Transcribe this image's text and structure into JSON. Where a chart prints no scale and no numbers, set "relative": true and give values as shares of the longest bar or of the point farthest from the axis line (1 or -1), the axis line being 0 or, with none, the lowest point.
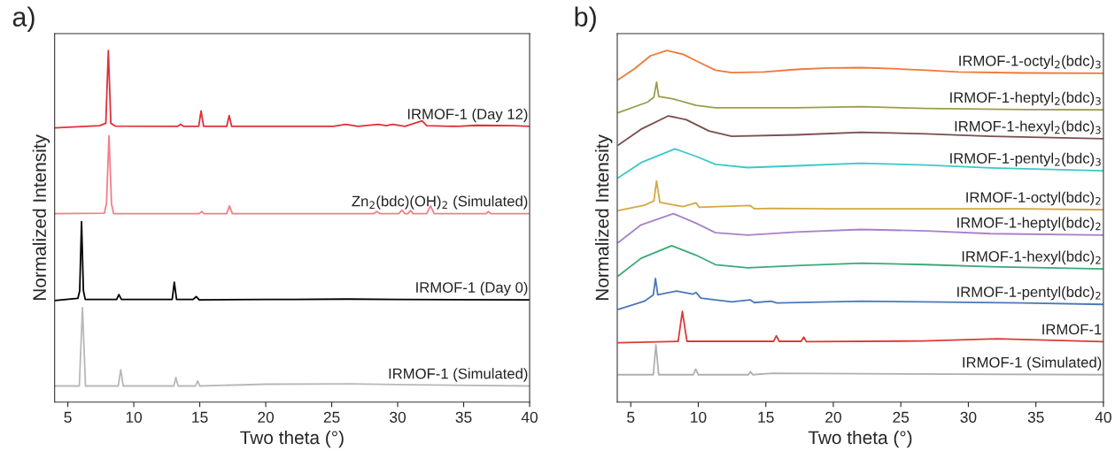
{
  "chart_data": [
    {
      "type": "line",
      "title": "a)",
      "xlabel": "Two theta (°)",
      "ylabel": "Normalized Intensity",
      "relative": true,
      "xlim": [
        4,
        40
      ],
      "xticks": [
        5,
        10,
        15,
        20,
        25,
        30,
        35,
        40
      ],
      "tick_labels": "x",
      "legend": false,
      "grid": false,
      "series": [
        {
          "name": "IRMOF-1 (Day 12)",
          "color": "#e0303a",
          "x": [
            4.0,
            7.41,
            7.88,
            8.07,
            8.26,
            8.59,
            13.31,
            13.55,
            13.78,
            14.92,
            15.1,
            15.29,
            17.04,
            17.23,
            17.42,
            25.12,
            26.06,
            27.0,
            28.54,
            29.13,
            29.6,
            30.55,
            31.02,
            31.85,
            32.2,
            34.56,
            35.98,
            38.8,
            40.0
          ],
          "values": [
            0.78,
            0.786,
            0.793,
            1.0,
            0.793,
            0.785,
            0.784,
            0.79,
            0.784,
            0.784,
            0.828,
            0.784,
            0.784,
            0.815,
            0.784,
            0.784,
            0.79,
            0.784,
            0.79,
            0.786,
            0.79,
            0.784,
            0.79,
            0.8,
            0.786,
            0.784,
            0.787,
            0.786,
            0.784
          ]
        },
        {
          "name": "Zn$_{2}$(bdc)(OH)$_{2}$ (Simulated)",
          "color": "#f08088",
          "x": [
            4.0,
            7.76,
            7.93,
            8.12,
            8.31,
            8.47,
            14.96,
            15.15,
            15.34,
            17.04,
            17.25,
            17.47,
            28.19,
            28.42,
            28.66,
            30.08,
            30.32,
            30.55,
            30.78,
            30.97,
            31.16,
            32.2,
            32.49,
            32.77,
            36.69,
            36.88,
            37.06,
            40.0
          ],
          "values": [
            0.536,
            0.537,
            0.564,
            0.758,
            0.564,
            0.536,
            0.536,
            0.542,
            0.536,
            0.536,
            0.558,
            0.536,
            0.536,
            0.542,
            0.536,
            0.536,
            0.546,
            0.536,
            0.536,
            0.545,
            0.536,
            0.536,
            0.558,
            0.536,
            0.536,
            0.542,
            0.536,
            0.536
          ]
        },
        {
          "name": "IRMOF-1 (Day 0)",
          "color": "#000000",
          "x": [
            4.0,
            5.76,
            5.9,
            6.04,
            6.18,
            6.32,
            8.7,
            8.87,
            9.06,
            12.91,
            13.07,
            13.24,
            14.49,
            14.73,
            14.96,
            20.16,
            22.16,
            26.18,
            29.84,
            40.0
          ],
          "values": [
            0.289,
            0.295,
            0.317,
            0.513,
            0.317,
            0.292,
            0.292,
            0.306,
            0.292,
            0.292,
            0.341,
            0.292,
            0.292,
            0.3,
            0.291,
            0.292,
            0.292,
            0.293,
            0.292,
            0.291
          ]
        },
        {
          "name": "IRMOF-1 (Simulated)",
          "color": "#b8b8b8",
          "x": [
            4.0,
            5.87,
            6.11,
            6.34,
            8.82,
            9.01,
            9.2,
            13.03,
            13.19,
            13.36,
            14.68,
            14.84,
            15.01,
            20.04,
            26.41,
            29.96,
            40.0
          ],
          "values": [
            0.046,
            0.046,
            0.269,
            0.046,
            0.046,
            0.092,
            0.046,
            0.046,
            0.07,
            0.046,
            0.046,
            0.06,
            0.046,
            0.051,
            0.052,
            0.05,
            0.046
          ]
        }
      ]
    },
    {
      "type": "line",
      "title": "b)",
      "xlabel": "Two theta (°)",
      "ylabel": "Normalized Intensity",
      "relative": true,
      "xlim": [
        4,
        40
      ],
      "xticks": [
        5,
        10,
        15,
        20,
        25,
        30,
        35,
        40
      ],
      "tick_labels": "x",
      "legend": false,
      "grid": false,
      "series": [
        {
          "name": "IRMOF-1-octyl$_{2}$(bdc)$_{3}$",
          "color": "#f07838",
          "x": [
            4.08,
            5.28,
            6.47,
            7.67,
            8.87,
            10.07,
            11.27,
            12.47,
            14.86,
            17.26,
            19.66,
            22.06,
            24.45,
            26.85,
            29.25,
            34.04,
            40.0
          ],
          "values": [
            0.917,
            0.948,
            0.985,
            1.0,
            0.989,
            0.966,
            0.944,
            0.937,
            0.939,
            0.946,
            0.95,
            0.951,
            0.948,
            0.944,
            0.939,
            0.936,
            0.935
          ]
        },
        {
          "name": "IRMOF-1-heptyl$_{2}$(bdc)$_{3}$",
          "color": "#9c9c50",
          "x": [
            4.08,
            6.24,
            6.71,
            6.91,
            7.07,
            8.15,
            9.83,
            11.27,
            13.83,
            17.26,
            22.06,
            26.85,
            34.04,
            40.0
          ],
          "values": [
            0.823,
            0.853,
            0.867,
            0.91,
            0.869,
            0.862,
            0.844,
            0.837,
            0.837,
            0.837,
            0.84,
            0.835,
            0.832,
            0.831
          ]
        },
        {
          "name": "IRMOF-1-hexyl$_{2}$(bdc)$_{3}$",
          "color": "#7a4e4e",
          "x": [
            4.08,
            5.76,
            7.79,
            9.11,
            10.79,
            12.47,
            17.26,
            22.06,
            26.85,
            31.65,
            40.0
          ],
          "values": [
            0.731,
            0.776,
            0.814,
            0.803,
            0.771,
            0.756,
            0.76,
            0.767,
            0.763,
            0.756,
            0.749
          ]
        },
        {
          "name": "IRMOF-1-pentyl$_{2}$(bdc)$_{3}$",
          "color": "#3cc8c8",
          "x": [
            4.08,
            5.76,
            8.27,
            9.83,
            11.27,
            13.66,
            17.26,
            22.06,
            26.85,
            31.65,
            40.0
          ],
          "values": [
            0.638,
            0.681,
            0.72,
            0.699,
            0.676,
            0.667,
            0.672,
            0.679,
            0.674,
            0.666,
            0.658
          ]
        },
        {
          "name": "IRMOF-1-octyl(bdc)$_{2}$",
          "color": "#d4a840",
          "x": [
            4.08,
            6.0,
            6.71,
            6.91,
            7.15,
            8.87,
            9.83,
            10.07,
            13.83,
            14.15,
            15.39,
            19.66,
            26.85,
            34.04,
            40.0
          ],
          "values": [
            0.545,
            0.56,
            0.572,
            0.629,
            0.568,
            0.556,
            0.567,
            0.554,
            0.559,
            0.55,
            0.551,
            0.55,
            0.55,
            0.55,
            0.547
          ]
        },
        {
          "name": "IRMOF-1-heptyl(bdc)$_{2}$",
          "color": "#a880cc",
          "x": [
            4.08,
            5.76,
            8.15,
            9.83,
            11.27,
            13.66,
            17.26,
            22.06,
            26.85,
            31.65,
            40.0
          ],
          "values": [
            0.454,
            0.504,
            0.536,
            0.509,
            0.482,
            0.475,
            0.484,
            0.491,
            0.487,
            0.479,
            0.475
          ]
        },
        {
          "name": "IRMOF-1-hexyl(bdc)$_{2}$",
          "color": "#3aaa78",
          "x": [
            4.08,
            5.76,
            8.03,
            9.83,
            11.27,
            13.66,
            17.26,
            22.06,
            26.85,
            31.65,
            40.0
          ],
          "values": [
            0.359,
            0.409,
            0.445,
            0.418,
            0.391,
            0.382,
            0.388,
            0.395,
            0.391,
            0.385,
            0.379
          ]
        },
        {
          "name": "IRMOF-1-pentyl(bdc)$_{2}$",
          "color": "#4a78b8",
          "x": [
            4.08,
            6.0,
            6.67,
            6.83,
            7.0,
            8.39,
            9.59,
            9.83,
            10.19,
            12.47,
            13.83,
            14.15,
            15.39,
            15.83,
            22.06,
            26.73,
            34.04,
            40.0
          ],
          "values": [
            0.264,
            0.287,
            0.305,
            0.352,
            0.305,
            0.316,
            0.307,
            0.312,
            0.296,
            0.285,
            0.291,
            0.283,
            0.287,
            0.282,
            0.287,
            0.285,
            0.282,
            0.278
          ]
        },
        {
          "name": "IRMOF-1",
          "color": "#e03838",
          "x": [
            4.08,
            8.51,
            8.82,
            9.16,
            15.58,
            15.78,
            15.99,
            17.62,
            17.81,
            18.0,
            26.61,
            32.12,
            40.0
          ],
          "values": [
            0.169,
            0.173,
            0.258,
            0.173,
            0.173,
            0.189,
            0.173,
            0.173,
            0.185,
            0.172,
            0.174,
            0.18,
            0.172
          ]
        },
        {
          "name": "IRMOF-1 (Simulated)",
          "color": "#b0b0b0",
          "x": [
            4.08,
            6.67,
            6.86,
            7.07,
            9.64,
            9.81,
            10.0,
            13.72,
            13.86,
            14.03,
            15.51,
            40.0
          ],
          "values": [
            0.078,
            0.078,
            0.163,
            0.078,
            0.078,
            0.094,
            0.078,
            0.078,
            0.087,
            0.078,
            0.082,
            0.078
          ]
        }
      ]
    }
  ]
}
